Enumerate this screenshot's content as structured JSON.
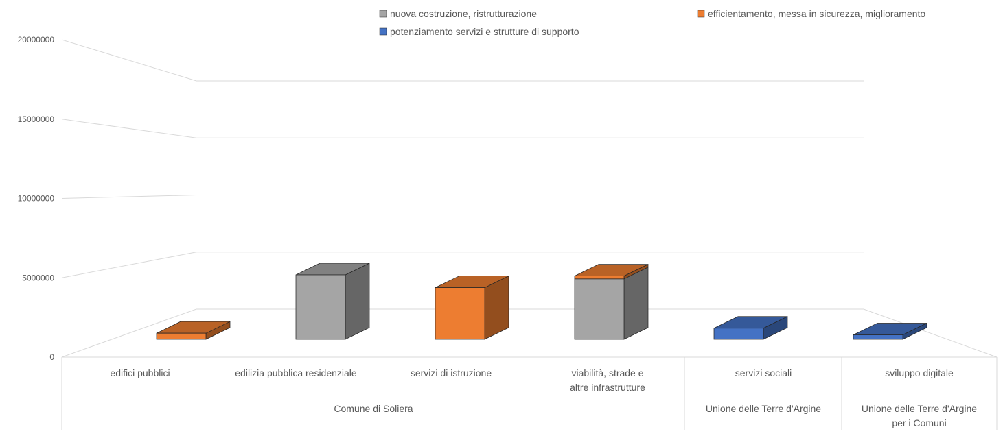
{
  "chart_data": {
    "type": "bar",
    "subtype": "3d-column",
    "ylim": [
      0,
      20000000
    ],
    "yticks": [
      0,
      5000000,
      10000000,
      15000000,
      20000000
    ],
    "ytick_labels": [
      "0",
      "5000000",
      "10000000",
      "15000000",
      "20000000"
    ],
    "grid": true,
    "legend_position": "top",
    "categories": [
      {
        "label": "edifici pubblici",
        "group": "Comune di Soliera"
      },
      {
        "label": "edilizia pubblica residenziale",
        "group": "Comune di Soliera"
      },
      {
        "label": "servizi di istruzione",
        "group": "Comune di Soliera"
      },
      {
        "label": "viabilità, strade e altre infrastrutture",
        "group": "Comune di Soliera"
      },
      {
        "label": "servizi sociali",
        "group": "Unione delle Terre d'Argine"
      },
      {
        "label": "sviluppo digitale",
        "group": "Unione delle Terre d'Argine per i Comuni"
      }
    ],
    "groups": [
      "Comune di Soliera",
      "Unione delle Terre d'Argine",
      "Unione delle Terre d'Argine per i Comuni"
    ],
    "series": [
      {
        "name": "nuova costruzione, ristrutturazione",
        "color": "#a5a5a5",
        "values": [
          0,
          4050000,
          0,
          3800000,
          0,
          0
        ]
      },
      {
        "name": "efficientamento, messa in sicurezza, miglioramento",
        "color": "#ed7d31",
        "values": [
          380000,
          0,
          3250000,
          180000,
          0,
          0
        ]
      },
      {
        "name": "potenziamento servizi e strutture di supporto",
        "color": "#4472c4",
        "values": [
          0,
          0,
          0,
          0,
          700000,
          280000
        ]
      }
    ]
  }
}
